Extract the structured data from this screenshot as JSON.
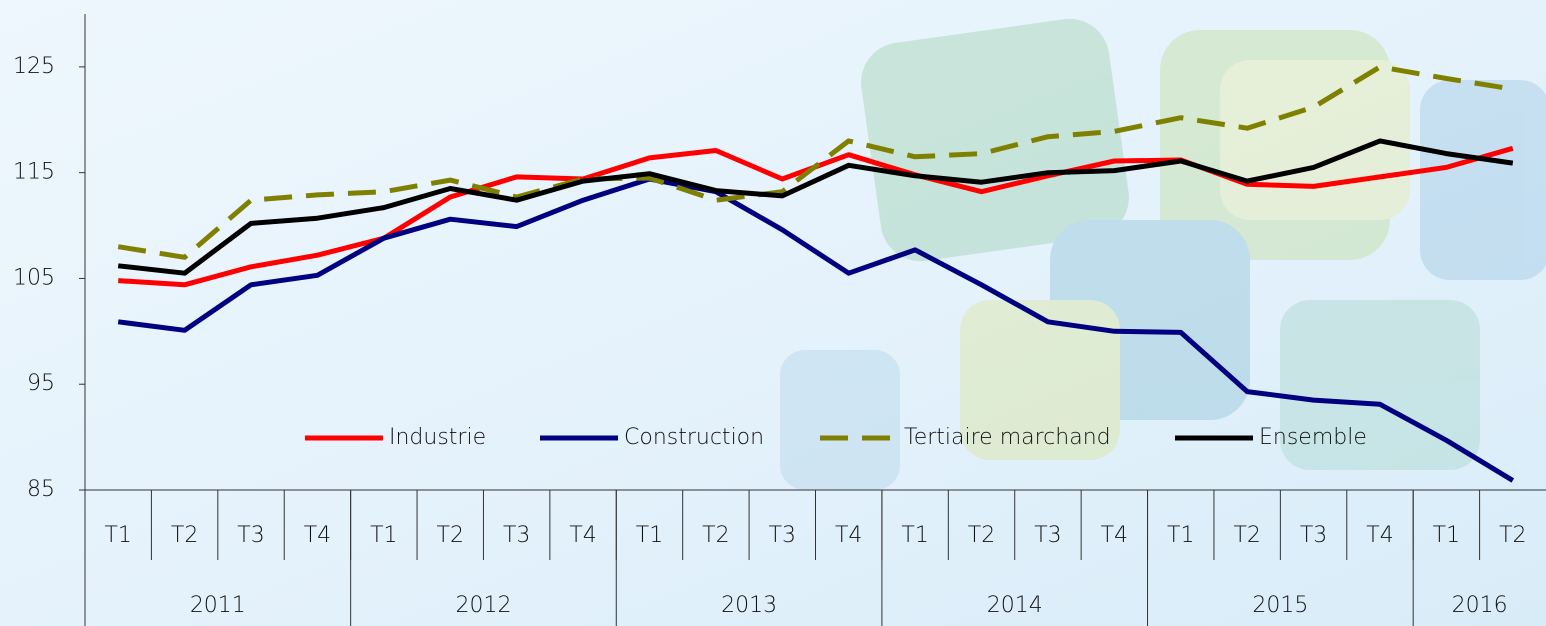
{
  "chart_data": {
    "type": "line",
    "categories": [
      "T1",
      "T2",
      "T3",
      "T4",
      "T1",
      "T2",
      "T3",
      "T4",
      "T1",
      "T2",
      "T3",
      "T4",
      "T1",
      "T2",
      "T3",
      "T4",
      "T1",
      "T2",
      "T3",
      "T4",
      "T1",
      "T2"
    ],
    "groups": [
      {
        "label": "2011",
        "span": 4
      },
      {
        "label": "2012",
        "span": 4
      },
      {
        "label": "2013",
        "span": 4
      },
      {
        "label": "2014",
        "span": 4
      },
      {
        "label": "2015",
        "span": 4
      },
      {
        "label": "2016",
        "span": 2
      }
    ],
    "series": [
      {
        "name": "Industrie",
        "color": "#ff0000",
        "values": [
          104.8,
          104.4,
          106.1,
          107.2,
          108.8,
          112.7,
          114.6,
          114.4,
          116.4,
          117.1,
          114.4,
          116.7,
          114.8,
          113.2,
          114.7,
          116.1,
          116.2,
          113.9,
          113.7,
          114.6,
          115.5,
          117.3
        ]
      },
      {
        "name": "Construction",
        "color": "#000080",
        "values": [
          100.9,
          100.1,
          104.4,
          105.3,
          108.8,
          110.6,
          109.9,
          112.4,
          114.4,
          113.2,
          109.6,
          105.5,
          107.7,
          104.4,
          100.9,
          100.0,
          99.9,
          94.3,
          93.5,
          93.1,
          89.7,
          85.9
        ]
      },
      {
        "name": "Tertiaire marchand",
        "color": "#808000",
        "dashed": true,
        "values": [
          108.0,
          107.0,
          112.4,
          112.9,
          113.2,
          114.3,
          112.7,
          114.4,
          114.5,
          112.4,
          113.2,
          118.0,
          116.5,
          116.8,
          118.4,
          118.9,
          120.2,
          119.2,
          121.2,
          125.0,
          123.9,
          122.9
        ]
      },
      {
        "name": "Ensemble",
        "color": "#000000",
        "values": [
          106.2,
          105.5,
          110.2,
          110.7,
          111.7,
          113.5,
          112.4,
          114.2,
          114.9,
          113.3,
          112.8,
          115.7,
          114.7,
          114.1,
          115.0,
          115.2,
          116.1,
          114.2,
          115.5,
          118.0,
          116.8,
          115.9
        ]
      }
    ],
    "ylim": [
      85,
      130
    ],
    "yticks": [
      85,
      95,
      105,
      115,
      125
    ],
    "grid": false
  }
}
